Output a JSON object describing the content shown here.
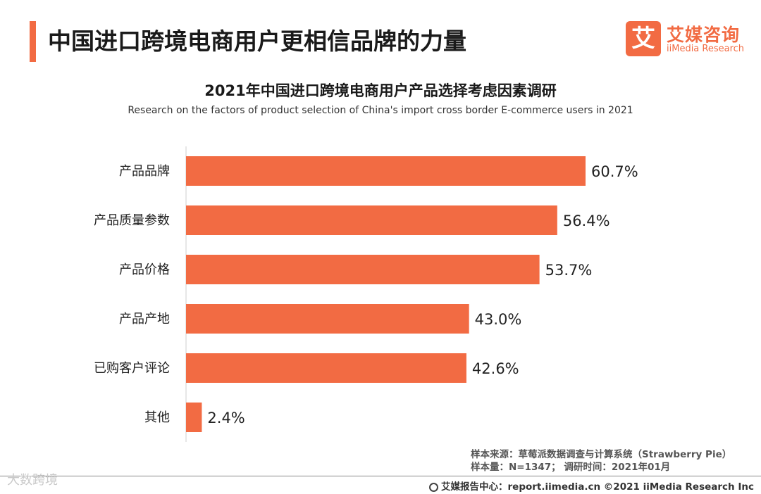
{
  "header": {
    "title": "中国进口跨境电商用户更相信品牌的力量"
  },
  "logo": {
    "mark": "艾",
    "cn": "艾媒咨询",
    "en": "iiMedia Research"
  },
  "chart_data": {
    "type": "bar",
    "orientation": "horizontal",
    "title": "2021年中国进口跨境电商用户产品选择考虑因素调研",
    "subtitle": "Research on the factors of product selection of China's import cross border E-commerce users in 2021",
    "categories": [
      "产品品牌",
      "产品质量参数",
      "产品价格",
      "产品产地",
      "已购客户评论",
      "其他"
    ],
    "values": [
      60.7,
      56.4,
      53.7,
      43.0,
      42.6,
      2.4
    ],
    "value_labels": [
      "60.7%",
      "56.4%",
      "53.7%",
      "43.0%",
      "42.6%",
      "2.4%"
    ],
    "unit": "%",
    "xlim": [
      0,
      65
    ],
    "bar_color": "#f26b43",
    "xlabel": "",
    "ylabel": ""
  },
  "notes": {
    "source": "样本来源：草莓派数据调查与计算系统（Strawberry Pie）",
    "sample": "样本量：N=1347；  调研时间：2021年01月"
  },
  "footer": {
    "watermark": "大数跨境",
    "credit": "艾媒报告中心：report.iimedia.cn   ©2021  iiMedia Research  Inc"
  }
}
